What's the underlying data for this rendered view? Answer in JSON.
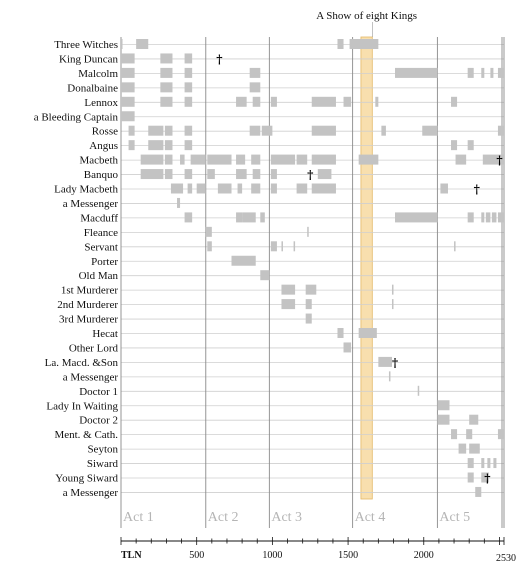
{
  "chart_data": {
    "type": "timeline",
    "title": "",
    "xlabel": "TLN",
    "xlim": [
      0,
      2530
    ],
    "x_ticks": [
      500,
      1000,
      1500,
      2000
    ],
    "x_end_label": "2530",
    "highlight": {
      "label": "A Show of eight Kings",
      "x": [
        1585,
        1660
      ]
    },
    "acts": [
      {
        "label": "Act 1",
        "start": 0
      },
      {
        "label": "Act 2",
        "start": 560
      },
      {
        "label": "Act 3",
        "start": 980
      },
      {
        "label": "Act 4",
        "start": 1530
      },
      {
        "label": "Act 5",
        "start": 2090
      }
    ],
    "bar_color": "#c3c3c3",
    "highlight_color": "#f8dfae",
    "rows": [
      {
        "name": "Three Witches",
        "spans": [
          [
            0,
            10
          ],
          [
            100,
            180
          ],
          [
            1430,
            1470
          ],
          [
            1510,
            1700
          ]
        ],
        "deaths": []
      },
      {
        "name": "King Duncan",
        "spans": [
          [
            0,
            90
          ],
          [
            260,
            340
          ],
          [
            420,
            470
          ]
        ],
        "deaths": [
          650
        ]
      },
      {
        "name": "Malcolm",
        "spans": [
          [
            0,
            90
          ],
          [
            260,
            340
          ],
          [
            420,
            470
          ],
          [
            850,
            920
          ],
          [
            1810,
            2090
          ],
          [
            2290,
            2330
          ],
          [
            2380,
            2400
          ],
          [
            2440,
            2460
          ],
          [
            2490,
            2530
          ]
        ],
        "deaths": []
      },
      {
        "name": "Donalbaine",
        "spans": [
          [
            0,
            90
          ],
          [
            260,
            340
          ],
          [
            420,
            470
          ],
          [
            850,
            920
          ]
        ],
        "deaths": []
      },
      {
        "name": "Lennox",
        "spans": [
          [
            0,
            90
          ],
          [
            260,
            340
          ],
          [
            420,
            470
          ],
          [
            760,
            830
          ],
          [
            870,
            920
          ],
          [
            990,
            1030
          ],
          [
            1260,
            1420
          ],
          [
            1470,
            1520
          ],
          [
            1680,
            1700
          ],
          [
            2180,
            2220
          ]
        ],
        "deaths": []
      },
      {
        "name": "a Bleeding Captain",
        "spans": [
          [
            0,
            90
          ]
        ],
        "deaths": []
      },
      {
        "name": "Rosse",
        "spans": [
          [
            50,
            90
          ],
          [
            180,
            280
          ],
          [
            290,
            340
          ],
          [
            420,
            470
          ],
          [
            850,
            920
          ],
          [
            930,
            1000
          ],
          [
            1260,
            1420
          ],
          [
            1720,
            1750
          ],
          [
            1990,
            2090
          ],
          [
            2490,
            2530
          ]
        ],
        "deaths": []
      },
      {
        "name": "Angus",
        "spans": [
          [
            50,
            90
          ],
          [
            180,
            280
          ],
          [
            290,
            340
          ],
          [
            420,
            470
          ],
          [
            2180,
            2220
          ],
          [
            2290,
            2330
          ]
        ],
        "deaths": []
      },
      {
        "name": "Macbeth",
        "spans": [
          [
            130,
            280
          ],
          [
            290,
            340
          ],
          [
            390,
            420
          ],
          [
            460,
            560
          ],
          [
            570,
            730
          ],
          [
            760,
            820
          ],
          [
            860,
            920
          ],
          [
            990,
            1150
          ],
          [
            1160,
            1230
          ],
          [
            1260,
            1420
          ],
          [
            1570,
            1700
          ],
          [
            2210,
            2280
          ],
          [
            2390,
            2530
          ]
        ],
        "deaths": [
          2500
        ]
      },
      {
        "name": "Banquo",
        "spans": [
          [
            130,
            280
          ],
          [
            290,
            340
          ],
          [
            420,
            470
          ],
          [
            570,
            620
          ],
          [
            760,
            830
          ],
          [
            870,
            920
          ],
          [
            990,
            1030
          ],
          [
            1300,
            1390
          ]
        ],
        "deaths": [
          1250
        ]
      },
      {
        "name": "Lady Macbeth",
        "spans": [
          [
            330,
            410
          ],
          [
            440,
            470
          ],
          [
            500,
            560
          ],
          [
            640,
            730
          ],
          [
            770,
            800
          ],
          [
            860,
            920
          ],
          [
            990,
            1030
          ],
          [
            1160,
            1230
          ],
          [
            1260,
            1420
          ],
          [
            2110,
            2160
          ]
        ],
        "deaths": [
          2350
        ]
      },
      {
        "name": "a Messenger",
        "spans": [
          [
            370,
            390
          ]
        ],
        "deaths": []
      },
      {
        "name": "Macduff",
        "spans": [
          [
            420,
            470
          ],
          [
            760,
            800
          ],
          [
            800,
            890
          ],
          [
            920,
            950
          ],
          [
            1810,
            2090
          ],
          [
            2290,
            2330
          ],
          [
            2380,
            2400
          ],
          [
            2410,
            2440
          ],
          [
            2450,
            2480
          ],
          [
            2490,
            2530
          ]
        ],
        "deaths": []
      },
      {
        "name": "Fleance",
        "spans": [
          [
            560,
            600
          ],
          [
            1230,
            1240
          ]
        ],
        "deaths": []
      },
      {
        "name": "Servant",
        "spans": [
          [
            570,
            600
          ],
          [
            990,
            1030
          ],
          [
            1060,
            1070
          ],
          [
            1140,
            1150
          ],
          [
            2200,
            2210
          ]
        ],
        "deaths": []
      },
      {
        "name": "Porter",
        "spans": [
          [
            730,
            890
          ]
        ],
        "deaths": []
      },
      {
        "name": "Old Man",
        "spans": [
          [
            920,
            980
          ]
        ],
        "deaths": []
      },
      {
        "name": "1st Murderer",
        "spans": [
          [
            1060,
            1150
          ],
          [
            1220,
            1290
          ],
          [
            1790,
            1800
          ]
        ],
        "deaths": []
      },
      {
        "name": "2nd Murderer",
        "spans": [
          [
            1060,
            1150
          ],
          [
            1220,
            1260
          ],
          [
            1790,
            1800
          ]
        ],
        "deaths": []
      },
      {
        "name": "3rd Murderer",
        "spans": [
          [
            1220,
            1260
          ]
        ],
        "deaths": []
      },
      {
        "name": "Hecat",
        "spans": [
          [
            1430,
            1470
          ],
          [
            1570,
            1690
          ]
        ],
        "deaths": []
      },
      {
        "name": "Other Lord",
        "spans": [
          [
            1470,
            1520
          ]
        ],
        "deaths": []
      },
      {
        "name": "La. Macd. &Son",
        "spans": [
          [
            1700,
            1790
          ]
        ],
        "deaths": [
          1810
        ]
      },
      {
        "name": "a Messenger",
        "spans": [
          [
            1770,
            1780
          ]
        ],
        "deaths": []
      },
      {
        "name": "Doctor 1",
        "spans": [
          [
            1960,
            1970
          ]
        ],
        "deaths": []
      },
      {
        "name": "Lady In Waiting",
        "spans": [
          [
            2090,
            2170
          ]
        ],
        "deaths": []
      },
      {
        "name": "Doctor 2",
        "spans": [
          [
            2090,
            2170
          ],
          [
            2300,
            2360
          ]
        ],
        "deaths": []
      },
      {
        "name": "Ment. & Cath.",
        "spans": [
          [
            2180,
            2220
          ],
          [
            2280,
            2320
          ],
          [
            2490,
            2530
          ]
        ],
        "deaths": []
      },
      {
        "name": "Seyton",
        "spans": [
          [
            2230,
            2280
          ],
          [
            2300,
            2370
          ]
        ],
        "deaths": []
      },
      {
        "name": "Siward",
        "spans": [
          [
            2290,
            2330
          ],
          [
            2380,
            2400
          ],
          [
            2420,
            2440
          ],
          [
            2460,
            2480
          ]
        ],
        "deaths": []
      },
      {
        "name": "Young Siward",
        "spans": [
          [
            2290,
            2330
          ],
          [
            2380,
            2430
          ]
        ],
        "deaths": [
          2420
        ]
      },
      {
        "name": "a Messenger",
        "spans": [
          [
            2340,
            2380
          ]
        ],
        "deaths": []
      }
    ]
  }
}
